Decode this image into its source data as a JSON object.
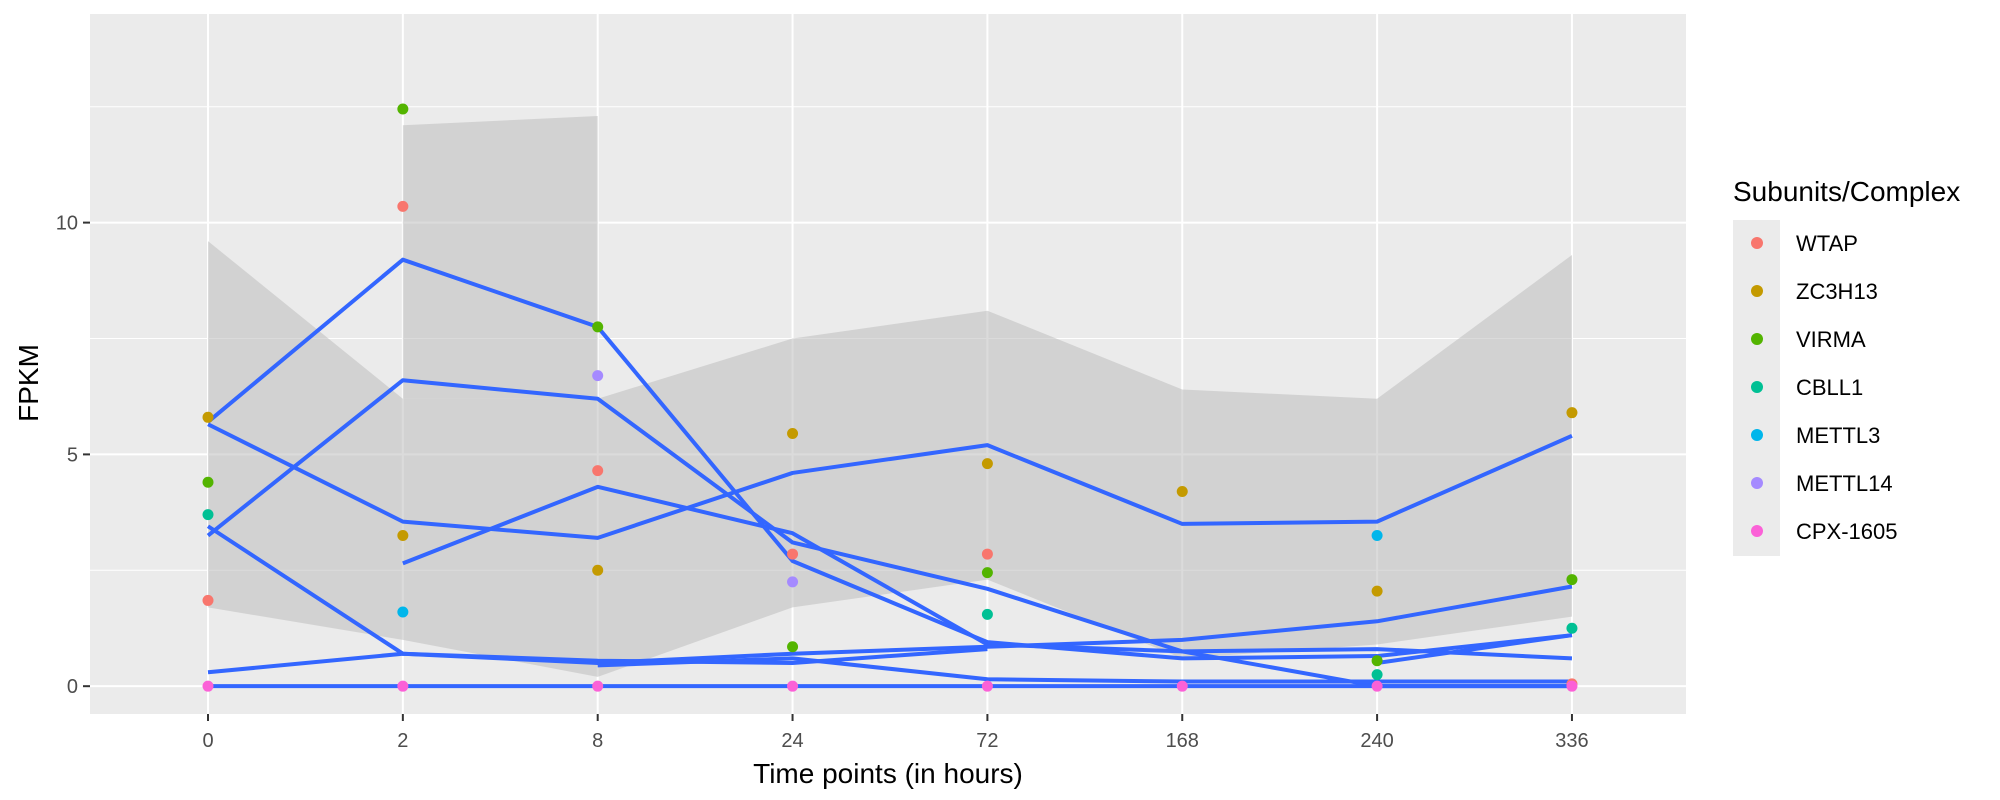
{
  "chart_data": {
    "type": "scatter",
    "xlabel": "Time points (in hours)",
    "ylabel": "FPKM",
    "categories": [
      "0",
      "2",
      "8",
      "24",
      "72",
      "168",
      "240",
      "336"
    ],
    "y_ticks": [
      "0",
      "5",
      "10"
    ],
    "ylim": [
      -0.6,
      14.5
    ],
    "grid": true,
    "legend": {
      "title": "Subunits/Complex",
      "position": "right"
    },
    "colors": {
      "panel": "#ebebeb",
      "grid": "#ffffff",
      "ribbon": "#bdbdbd",
      "fit_line": "#3366ff"
    },
    "series": [
      {
        "name": "WTAP",
        "color": "#F8766D",
        "values": [
          1.85,
          10.35,
          4.65,
          2.85,
          2.85,
          null,
          null,
          0.05
        ]
      },
      {
        "name": "ZC3H13",
        "color": "#C49A00",
        "values": [
          5.8,
          3.25,
          2.5,
          5.45,
          4.8,
          4.2,
          2.05,
          5.9
        ]
      },
      {
        "name": "VIRMA",
        "color": "#53B400",
        "values": [
          4.4,
          12.45,
          7.75,
          0.85,
          2.45,
          null,
          0.55,
          2.3
        ]
      },
      {
        "name": "CBLL1",
        "color": "#00C094",
        "values": [
          3.7,
          null,
          null,
          null,
          1.55,
          null,
          0.25,
          1.25
        ]
      },
      {
        "name": "METTL3",
        "color": "#00B6EB",
        "values": [
          null,
          1.6,
          null,
          null,
          null,
          null,
          3.25,
          null
        ]
      },
      {
        "name": "METTL14",
        "color": "#A58AFF",
        "values": [
          null,
          null,
          6.7,
          2.25,
          null,
          null,
          null,
          null
        ]
      },
      {
        "name": "CPX-1605",
        "color": "#FB61D7",
        "values": [
          0.0,
          0.0,
          0.0,
          0.0,
          0.0,
          0.0,
          0.0,
          0.0
        ]
      }
    ],
    "fit_lines": [
      [
        5.7,
        9.2,
        7.75,
        2.7,
        0.95,
        0.6,
        0.65,
        1.1
      ],
      [
        3.45,
        0.7,
        0.5,
        0.7,
        0.85,
        1.0,
        1.4,
        2.15
      ],
      [
        5.65,
        3.55,
        3.2,
        4.6,
        5.2,
        3.5,
        3.55,
        5.4
      ],
      [
        null,
        2.65,
        4.3,
        3.3,
        0.9,
        0.75,
        0.0,
        0.0
      ],
      [
        3.25,
        6.6,
        6.2,
        3.1,
        2.1,
        0.75,
        0.8,
        0.6
      ],
      [
        0.3,
        0.7,
        0.55,
        0.5,
        0.8,
        null,
        0.5,
        1.1
      ],
      [
        null,
        null,
        0.45,
        0.6,
        0.15,
        0.1,
        0.1,
        0.1
      ],
      [
        0.0,
        0.0,
        0.0,
        0.0,
        0.0,
        0.0,
        0.0,
        0.0
      ]
    ],
    "ribbons": [
      {
        "x_range": [
          0,
          7
        ],
        "upper": [
          9.6,
          6.2,
          6.2,
          7.5,
          8.1,
          6.4,
          6.2,
          9.3
        ],
        "lower": [
          1.7,
          1.0,
          0.2,
          1.7,
          2.3,
          0.6,
          0.9,
          1.5
        ]
      },
      {
        "x_range": [
          1,
          2
        ],
        "upper": [
          12.1,
          12.3
        ],
        "lower": [
          6.2,
          6.2
        ]
      }
    ]
  }
}
